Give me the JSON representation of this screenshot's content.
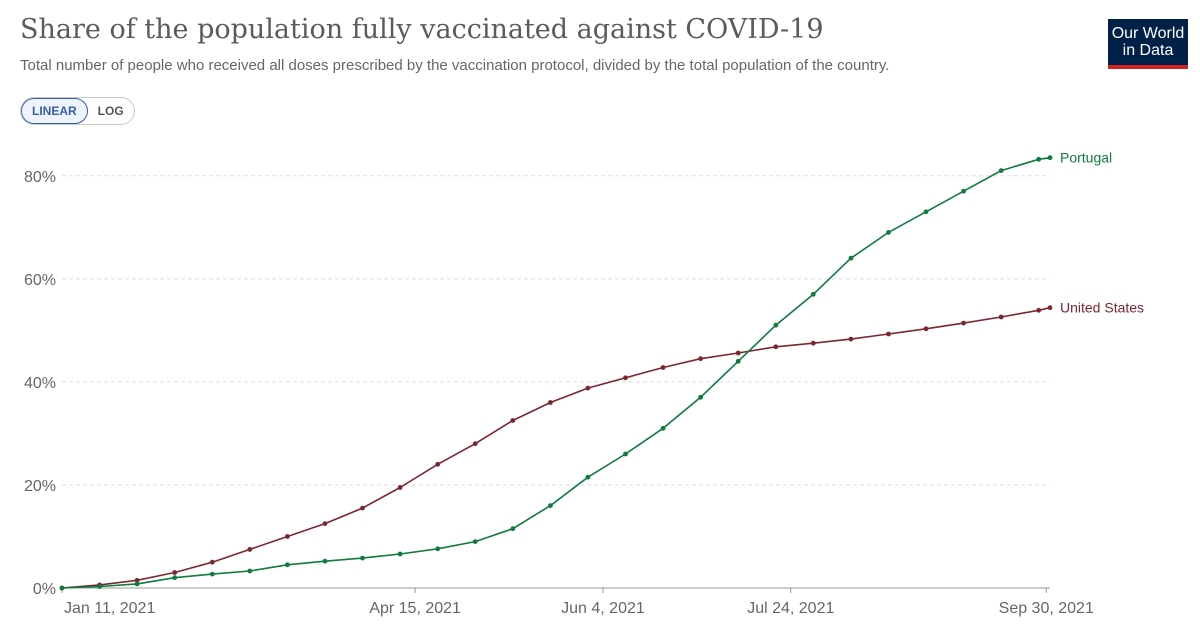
{
  "header": {
    "title": "Share of the population fully vaccinated against COVID-19",
    "subtitle": "Total number of people who received all doses prescribed by the vaccination protocol, divided by the total population of the country.",
    "logo_line1": "Our World",
    "logo_line2": "in Data"
  },
  "controls": {
    "linear_label": "LINEAR",
    "log_label": "LOG",
    "active": "linear"
  },
  "colors": {
    "portugal": "#0f7b3f",
    "united_states": "#7c2630",
    "grid": "#dddddd",
    "logo_bg": "#002147",
    "logo_accent": "#ce261e"
  },
  "chart_data": {
    "type": "line",
    "title": "Share of the population fully vaccinated against COVID-19",
    "xlabel": "",
    "ylabel": "",
    "ylim": [
      0,
      85
    ],
    "x_domain": [
      0,
      263
    ],
    "y_ticks": [
      0,
      20,
      40,
      60,
      80
    ],
    "y_tick_labels": [
      "0%",
      "20%",
      "40%",
      "60%",
      "80%"
    ],
    "x_ticks": [
      0,
      94,
      144,
      194,
      262
    ],
    "x_tick_labels": [
      "Jan 11, 2021",
      "Apr 15, 2021",
      "Jun 4, 2021",
      "Jul 24, 2021",
      "Sep 30, 2021"
    ],
    "grid": true,
    "series": [
      {
        "name": "United States",
        "label": "United States",
        "color": "#7c2630",
        "x": [
          0,
          10,
          20,
          30,
          40,
          50,
          60,
          70,
          80,
          90,
          100,
          110,
          120,
          130,
          140,
          150,
          160,
          170,
          180,
          190,
          200,
          210,
          220,
          230,
          240,
          250,
          260,
          263
        ],
        "y": [
          0,
          0.6,
          1.5,
          3.0,
          5.0,
          7.5,
          10.0,
          12.5,
          15.5,
          19.5,
          24.0,
          28.0,
          32.5,
          36.0,
          38.8,
          40.8,
          42.8,
          44.5,
          45.6,
          46.8,
          47.5,
          48.3,
          49.3,
          50.3,
          51.4,
          52.6,
          53.9,
          54.4
        ]
      },
      {
        "name": "Portugal",
        "label": "Portugal",
        "color": "#0f7b3f",
        "x": [
          0,
          10,
          20,
          30,
          40,
          50,
          60,
          70,
          80,
          90,
          100,
          110,
          120,
          130,
          140,
          150,
          160,
          170,
          180,
          190,
          200,
          210,
          220,
          230,
          240,
          250,
          260,
          263
        ],
        "y": [
          0,
          0.3,
          0.8,
          2.0,
          2.7,
          3.3,
          4.5,
          5.2,
          5.8,
          6.6,
          7.6,
          9.0,
          11.5,
          16.0,
          21.5,
          26.0,
          31.0,
          37.0,
          44.0,
          51.0,
          57.0,
          64.0,
          69.0,
          73.0,
          77.0,
          81.0,
          83.2,
          83.5
        ]
      }
    ]
  }
}
